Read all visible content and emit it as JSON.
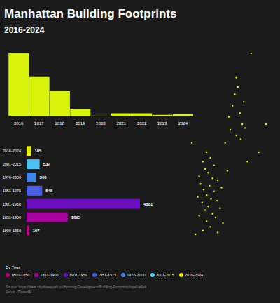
{
  "title": "Manhattan Building Footprints",
  "subtitle": "2016-2024",
  "legend_title": "By Year",
  "source": "Source: https://data.cityofnewyork.us/Housing-Development/Building-Footprints/nqwf-w8eh",
  "credit": "Derek - PowerBI",
  "chart_data": [
    {
      "type": "bar",
      "categories": [
        "2016",
        "2017",
        "2018",
        "2019",
        "2020",
        "2021",
        "2022",
        "2023",
        "2024"
      ],
      "values": [
        80,
        50,
        32,
        9,
        1,
        4,
        4,
        2,
        3
      ],
      "color": "#d9f20a",
      "tick_labels": "x"
    },
    {
      "type": "bar",
      "orientation": "horizontal",
      "categories": [
        "2016-2024",
        "2001-2015",
        "1976-2000",
        "1951-1975",
        "1901-1950",
        "1851-1900",
        "1800-1850"
      ],
      "values": [
        185,
        537,
        393,
        645,
        4681,
        1695,
        107
      ],
      "colors": [
        "#e8f20a",
        "#4fc3ef",
        "#3f83e6",
        "#4a5ee6",
        "#6a0dbf",
        "#a8009e",
        "#c4007e"
      ],
      "data_labels": true,
      "tick_labels": "y"
    },
    {
      "type": "scatter",
      "color": "#e8f20a",
      "tick_labels": false,
      "x": [
        80,
        60,
        62,
        58,
        70,
        55,
        65,
        50,
        68,
        72,
        52,
        60,
        66,
        45,
        20,
        25,
        15,
        30,
        18,
        22,
        10,
        28,
        35,
        12,
        24,
        40,
        16,
        30,
        20,
        8,
        26,
        34,
        14,
        22,
        38,
        18,
        28,
        10,
        32,
        20,
        42,
        25,
        15,
        35,
        5,
        100,
        90,
        75,
        0,
        48
      ],
      "y": [
        98,
        85,
        80,
        76,
        72,
        70,
        66,
        64,
        60,
        58,
        57,
        54,
        52,
        50,
        45,
        42,
        40,
        38,
        36,
        34,
        32,
        31,
        30,
        28,
        27,
        26,
        25,
        24,
        22,
        21,
        20,
        19,
        18,
        16,
        15,
        14,
        12,
        11,
        10,
        8,
        7,
        5,
        3,
        2,
        1,
        60,
        45,
        40,
        50,
        35
      ]
    }
  ]
}
